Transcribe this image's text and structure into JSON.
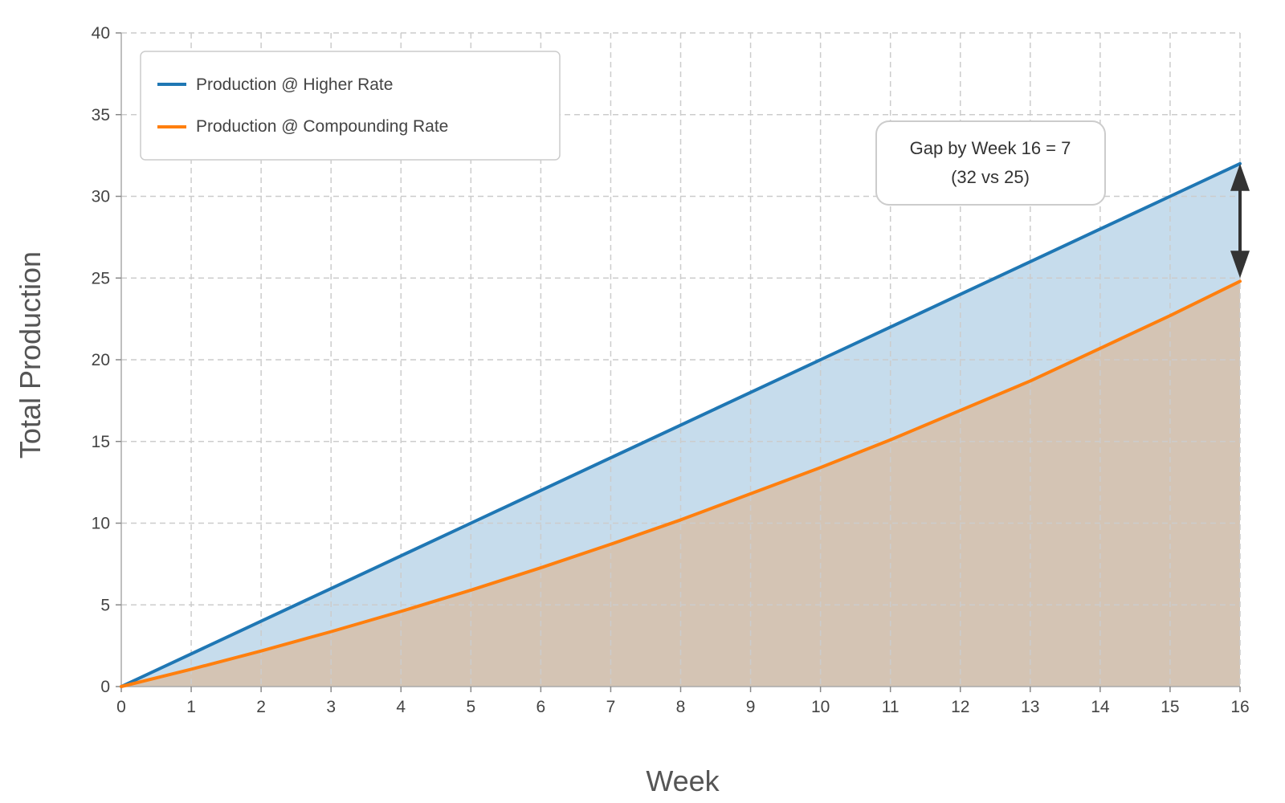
{
  "chart_data": {
    "type": "area",
    "xlabel": "Week",
    "ylabel": "Total Production",
    "xlim": [
      0,
      16
    ],
    "ylim": [
      0,
      40
    ],
    "x_ticks": [
      0,
      1,
      2,
      3,
      4,
      5,
      6,
      7,
      8,
      9,
      10,
      11,
      12,
      13,
      14,
      15,
      16
    ],
    "y_ticks": [
      0,
      5,
      10,
      15,
      20,
      25,
      30,
      35,
      40
    ],
    "grid": true,
    "grid_style": "dashed",
    "legend_position": "top-left",
    "x": [
      0,
      1,
      2,
      3,
      4,
      5,
      6,
      7,
      8,
      9,
      10,
      11,
      12,
      13,
      14,
      15,
      16
    ],
    "series": [
      {
        "name": "Production @ Higher Rate",
        "color": "#1f77b4",
        "fill": "#c6dcec",
        "values": [
          0,
          2,
          4,
          6,
          8,
          10,
          12,
          14,
          16,
          18,
          20,
          22,
          24,
          26,
          28,
          30,
          32
        ]
      },
      {
        "name": "Production @ Compounding Rate",
        "color": "#ff7f0e",
        "fill": "#d4c4b4",
        "values": [
          0,
          1.06,
          2.18,
          3.36,
          4.6,
          5.9,
          7.27,
          8.71,
          10.2,
          11.8,
          13.4,
          15.1,
          16.9,
          18.7,
          20.7,
          22.7,
          24.8
        ]
      }
    ],
    "annotation": {
      "line1": "Gap by Week 16 = 7",
      "line2": "(32 vs 25)",
      "arrow_x": 16,
      "arrow_from": 32,
      "arrow_to": 25
    }
  }
}
